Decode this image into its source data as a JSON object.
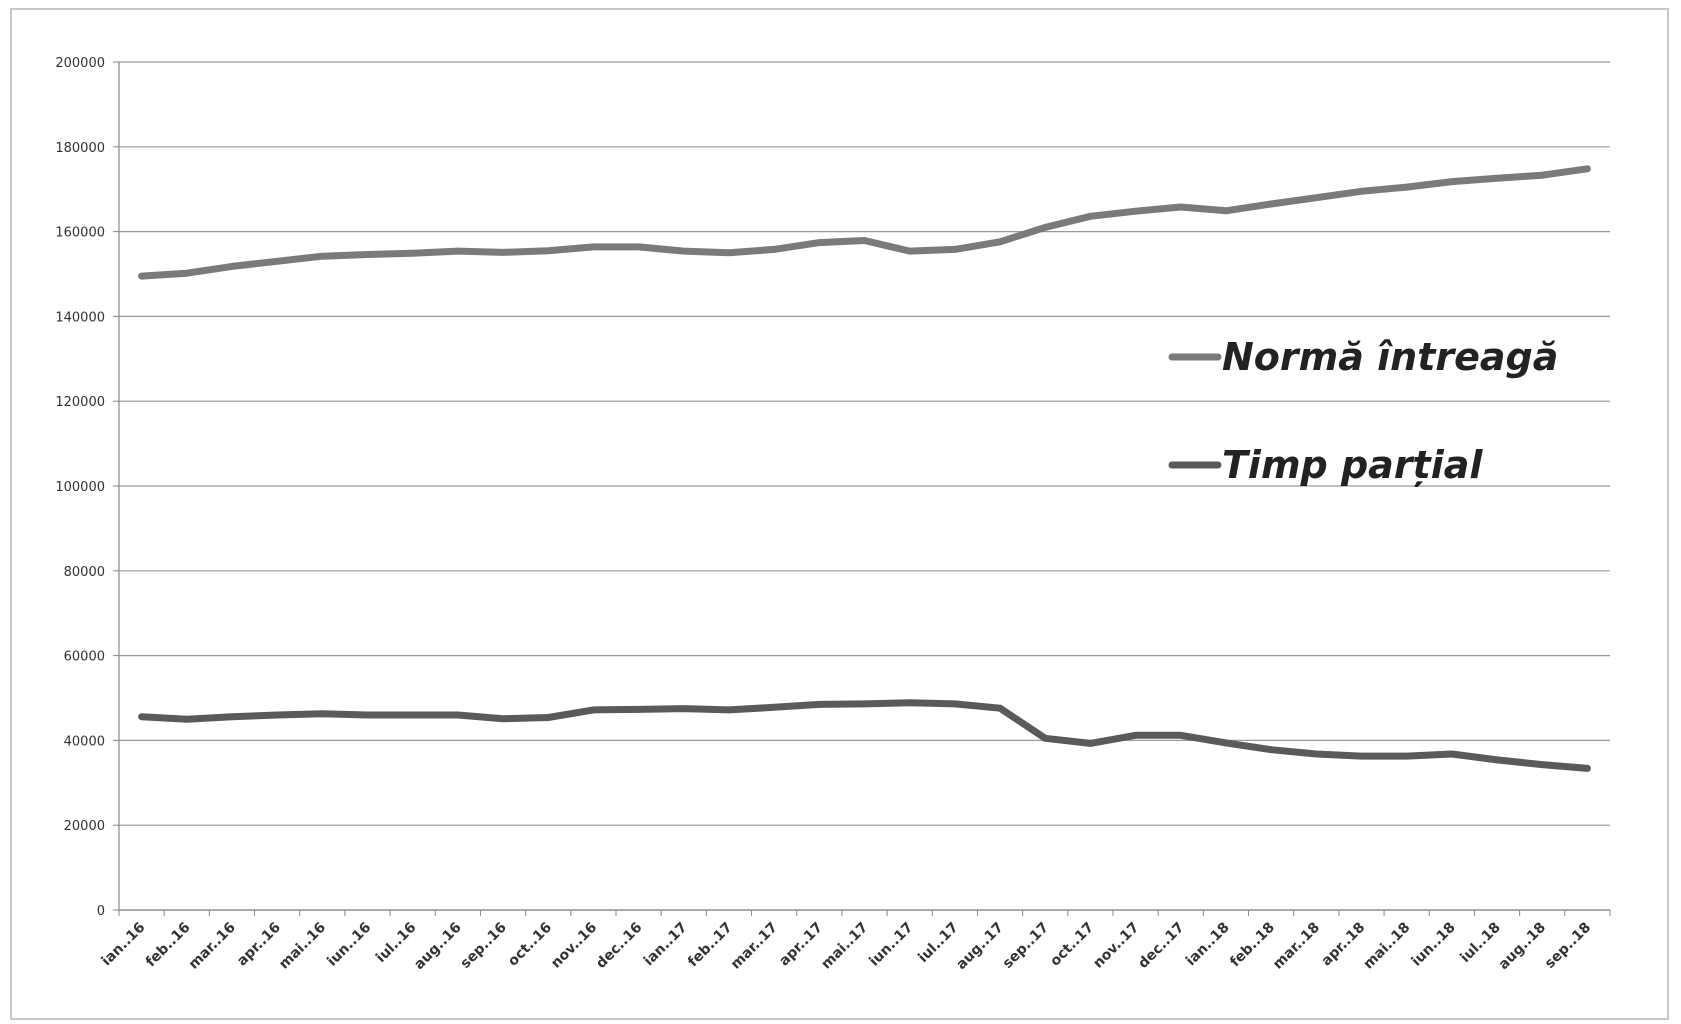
{
  "chart_data": {
    "type": "line",
    "title": "",
    "xlabel": "",
    "ylabel": "",
    "ylim": [
      0,
      200000
    ],
    "yticks": [
      "0",
      "20000",
      "40000",
      "60000",
      "80000",
      "100000",
      "120000",
      "140000",
      "160000",
      "180000",
      "200000"
    ],
    "grid": true,
    "legend_position": "right",
    "categories": [
      "ian..16",
      "feb..16",
      "mar..16",
      "apr..16",
      "mai..16",
      "iun..16",
      "iul..16",
      "aug..16",
      "sep..16",
      "oct..16",
      "nov..16",
      "dec..16",
      "ian..17",
      "feb..17",
      "mar..17",
      "apr..17",
      "mai..17",
      "iun..17",
      "iul..17",
      "aug..17",
      "sep..17",
      "oct..17",
      "nov..17",
      "dec..17",
      "ian..18",
      "feb..18",
      "mar..18",
      "apr..18",
      "mai..18",
      "iun..18",
      "iul..18",
      "aug..18",
      "sep..18"
    ],
    "series": [
      {
        "name": "Normă întreagă",
        "color": "#7a7a7a",
        "values": [
          149500,
          150200,
          151800,
          153000,
          154200,
          154600,
          154900,
          155400,
          155100,
          155500,
          156400,
          156400,
          155400,
          155000,
          155800,
          157400,
          157900,
          155400,
          155800,
          157600,
          161000,
          163600,
          164800,
          165800,
          164900,
          166500,
          168000,
          169500,
          170500,
          171800,
          172600,
          173300,
          174800
        ]
      },
      {
        "name": "Timp parțial",
        "color": "#5a5a5a",
        "values": [
          45600,
          45000,
          45600,
          46000,
          46300,
          46000,
          46000,
          46000,
          45100,
          45400,
          47200,
          47300,
          47500,
          47200,
          47800,
          48500,
          48600,
          48900,
          48600,
          47600,
          40500,
          39300,
          41200,
          41200,
          39400,
          37800,
          36800,
          36300,
          36300,
          36800,
          35400,
          34300,
          33400
        ]
      }
    ]
  }
}
